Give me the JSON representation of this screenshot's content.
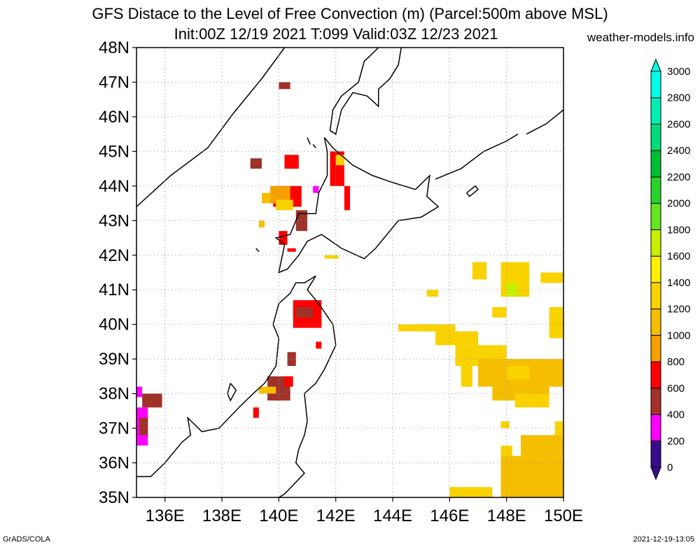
{
  "header": {
    "title_line1": "GFS Distace to the Level of Free Convection (m) (Parcel:500m above MSL)",
    "title_line2": "Init:00Z 12/19 2021 T:099 Valid:03Z 12/23 2021",
    "credit": "weather-models.info"
  },
  "footer": {
    "left": "GrADS/COLA",
    "right": "2021-12-19-13:05"
  },
  "map": {
    "lat_range": [
      35,
      48
    ],
    "lon_range": [
      135,
      150
    ],
    "lat_ticks": [
      "35N",
      "36N",
      "37N",
      "38N",
      "39N",
      "40N",
      "41N",
      "42N",
      "43N",
      "44N",
      "45N",
      "46N",
      "47N",
      "48N"
    ],
    "lon_ticks": [
      "136E",
      "138E",
      "140E",
      "142E",
      "144E",
      "146E",
      "148E",
      "150E"
    ],
    "grid": true,
    "colorbar": {
      "labels": [
        "0",
        "200",
        "400",
        "600",
        "800",
        "1000",
        "1200",
        "1400",
        "1600",
        "1800",
        "2000",
        "2200",
        "2400",
        "2600",
        "2800",
        "3000"
      ],
      "colors": [
        "#3a0a8c",
        "#ff00ff",
        "#a0322a",
        "#ff0000",
        "#f5a000",
        "#f5be00",
        "#fad200",
        "#fff000",
        "#c8f000",
        "#64e61e",
        "#28d228",
        "#00be32",
        "#00dc78",
        "#00f0b4",
        "#00ffe6"
      ]
    }
  }
}
